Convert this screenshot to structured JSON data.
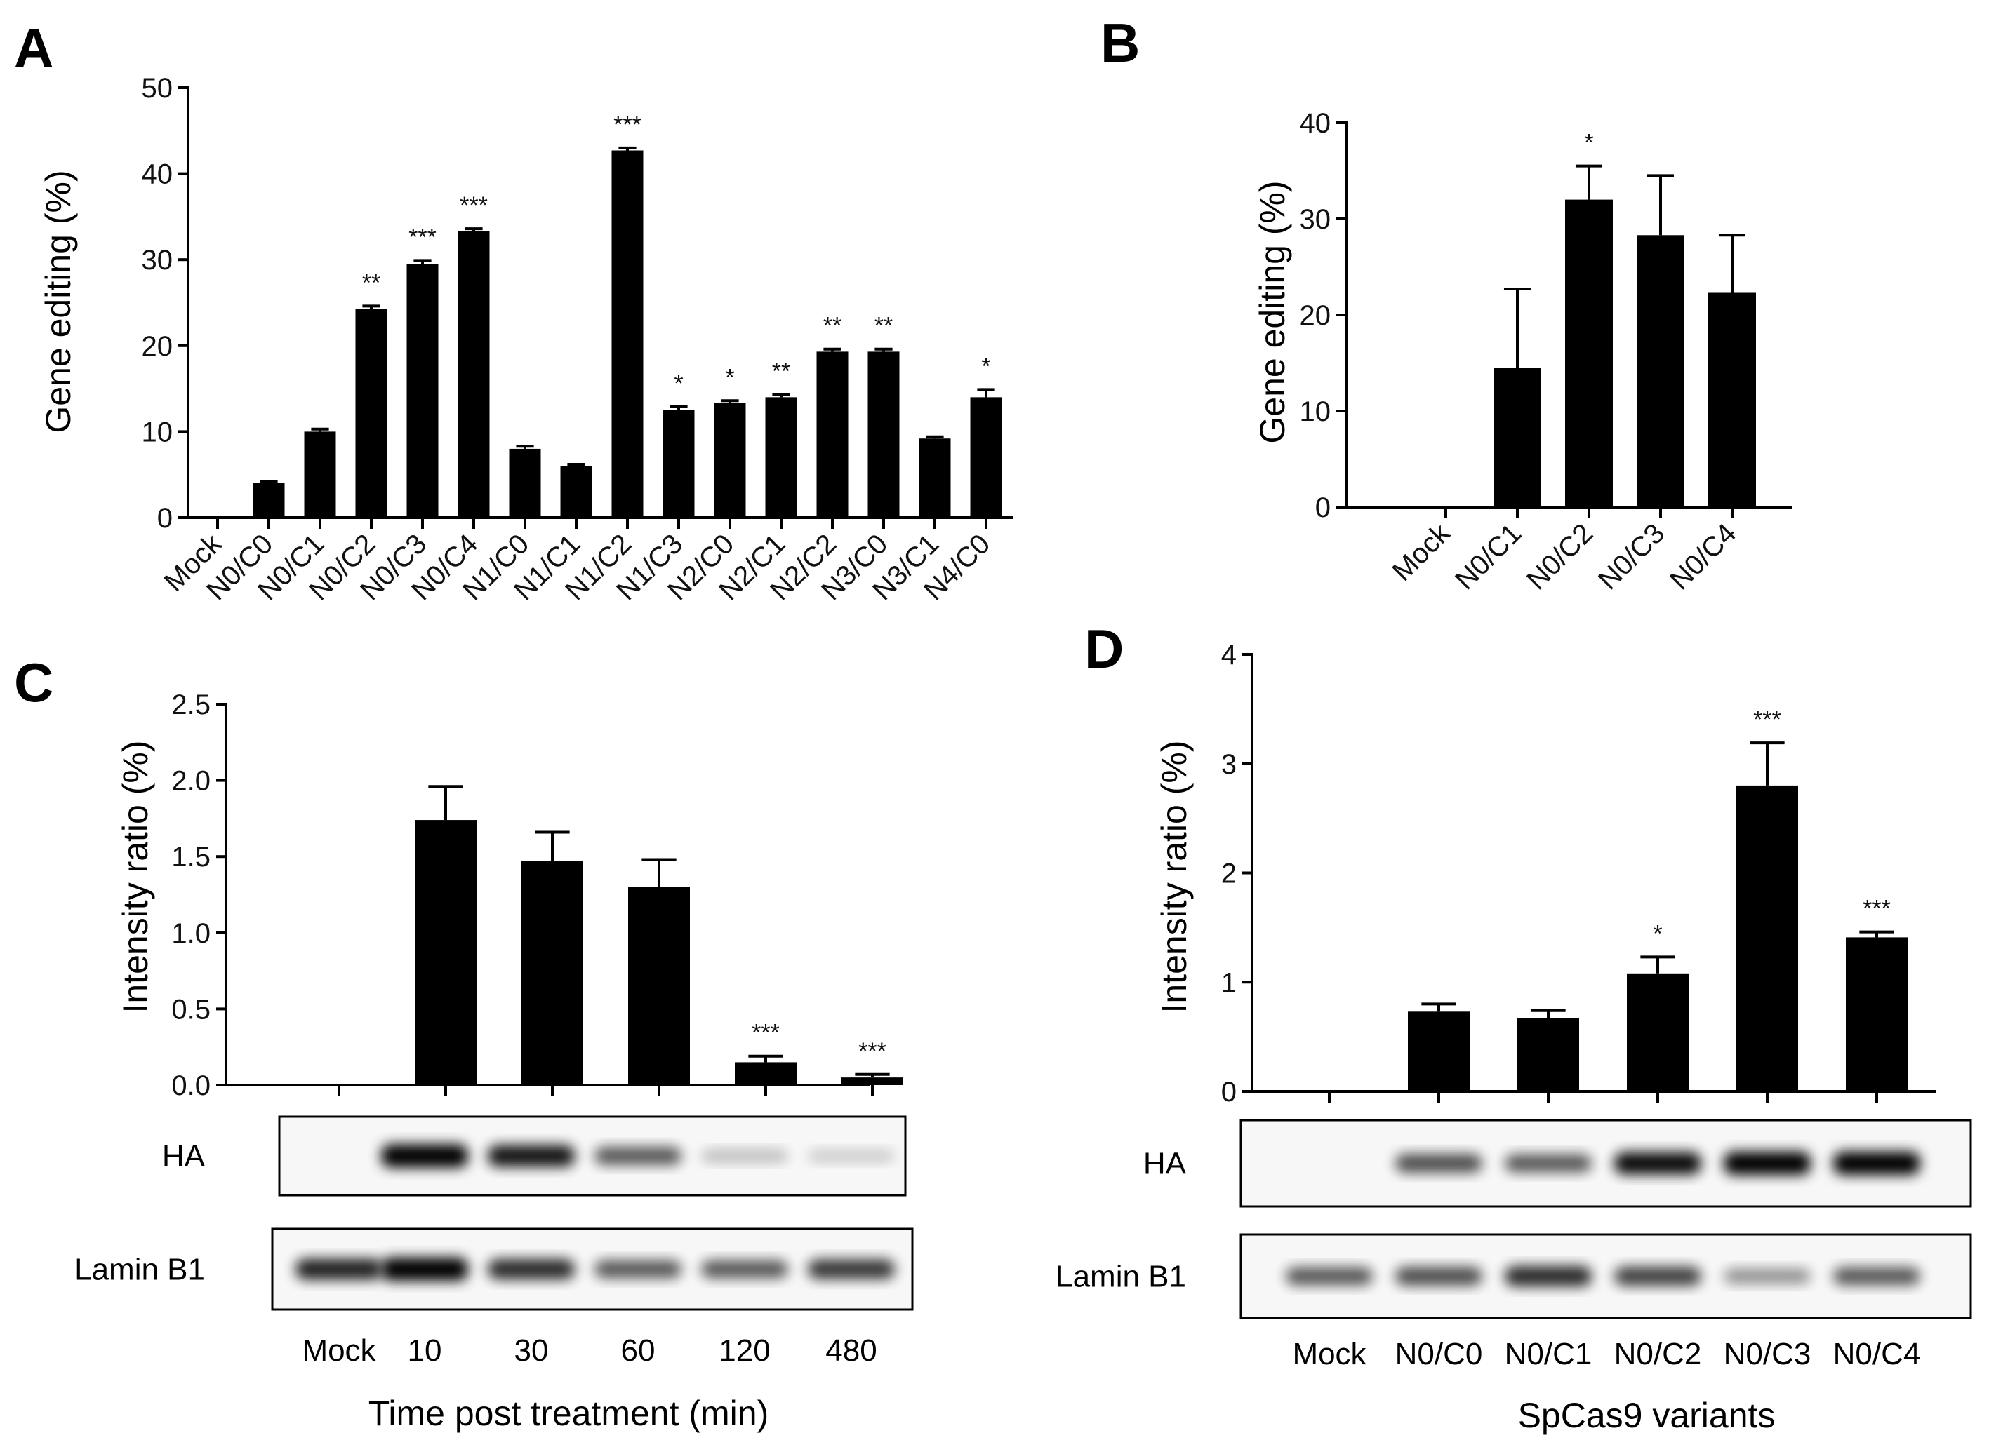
{
  "chart_data": [
    {
      "id": "A",
      "panel_label": "A",
      "type": "bar",
      "ylabel": "Gene editing (%)",
      "xlabel": "",
      "ylim": [
        0,
        50
      ],
      "yticks": [
        "0",
        "10",
        "20",
        "30",
        "40",
        "50"
      ],
      "categories": [
        "Mock",
        "N0/C0",
        "N0/C1",
        "N0/C2",
        "N0/C3",
        "N0/C4",
        "N1/C0",
        "N1/C1",
        "N1/C2",
        "N1/C3",
        "N2/C0",
        "N2/C1",
        "N2/C2",
        "N3/C0",
        "N3/C1",
        "N4/C0"
      ],
      "values": [
        0,
        4,
        10,
        24.3,
        29.5,
        33.3,
        8,
        6,
        42.7,
        12.5,
        13.3,
        14,
        19.3,
        19.3,
        9.2,
        14
      ],
      "errors": [
        0,
        0.2,
        0.3,
        0.3,
        0.4,
        0.3,
        0.3,
        0.2,
        0.3,
        0.4,
        0.3,
        0.3,
        0.3,
        0.3,
        0.2,
        0.9
      ],
      "significance": [
        "",
        "",
        "",
        "**",
        "***",
        "***",
        "",
        "",
        "***",
        "*",
        "*",
        "**",
        "**",
        "**",
        "",
        "*"
      ]
    },
    {
      "id": "B",
      "panel_label": "B",
      "type": "bar",
      "ylabel": "Gene editing (%)",
      "xlabel": "",
      "ylim": [
        0,
        40
      ],
      "yticks": [
        "0",
        "10",
        "20",
        "30",
        "40"
      ],
      "categories": [
        "Mock",
        "N0/C1",
        "N0/C2",
        "N0/C3",
        "N0/C4"
      ],
      "values": [
        0,
        14.5,
        32,
        28.3,
        22.3
      ],
      "errors": [
        0,
        8.2,
        3.5,
        6.2,
        6
      ],
      "significance": [
        "",
        "",
        "*",
        "",
        ""
      ]
    },
    {
      "id": "C",
      "panel_label": "C",
      "type": "bar",
      "ylabel": "Intensity ratio (%)",
      "xlabel": "Time post treatment (min)",
      "ylim": [
        0,
        2.5
      ],
      "yticks": [
        "0.0",
        "0.5",
        "1.0",
        "1.5",
        "2.0",
        "2.5"
      ],
      "categories": [
        "Mock",
        "10",
        "30",
        "60",
        "120",
        "480"
      ],
      "values": [
        0,
        1.74,
        1.47,
        1.3,
        0.15,
        0.05
      ],
      "errors": [
        0,
        0.22,
        0.19,
        0.18,
        0.04,
        0.02
      ],
      "significance": [
        "",
        "",
        "",
        "",
        "***",
        "***"
      ],
      "blot_labels": [
        "HA",
        "Lamin B1"
      ]
    },
    {
      "id": "D",
      "panel_label": "D",
      "type": "bar",
      "ylabel": "Intensity ratio (%)",
      "xlabel": "SpCas9 variants",
      "ylim": [
        0,
        4
      ],
      "yticks": [
        "0",
        "1",
        "2",
        "3",
        "4"
      ],
      "categories": [
        "Mock",
        "N0/C0",
        "N0/C1",
        "N0/C2",
        "N0/C3",
        "N0/C4"
      ],
      "values": [
        0,
        0.73,
        0.67,
        1.08,
        2.8,
        1.41
      ],
      "errors": [
        0,
        0.07,
        0.07,
        0.15,
        0.39,
        0.05
      ],
      "significance": [
        "",
        "",
        "",
        "*",
        "***",
        "***"
      ],
      "blot_labels": [
        "HA",
        "Lamin B1"
      ]
    }
  ],
  "blots": {
    "C": {
      "HA": [
        0,
        1,
        0.85,
        0.55,
        0.1,
        0.04
      ],
      "LaminB1": [
        0.8,
        1,
        0.75,
        0.55,
        0.55,
        0.7
      ]
    },
    "D": {
      "HA": [
        0,
        0.6,
        0.55,
        0.9,
        1,
        1
      ],
      "LaminB1": [
        0.55,
        0.6,
        0.75,
        0.65,
        0.3,
        0.55
      ]
    }
  }
}
